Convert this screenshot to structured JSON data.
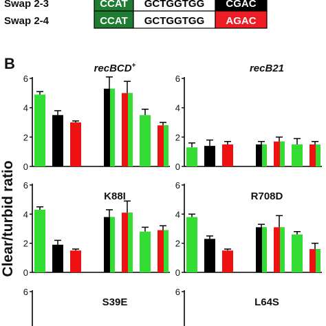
{
  "colors": {
    "green": "#33dd33",
    "black": "#000000",
    "red": "#ee1111",
    "box_green": "#1e7d32",
    "box_red": "#ee1c24"
  },
  "table": {
    "rows": [
      {
        "label": "Swap 2-3",
        "cells": [
          {
            "text": "CCAT",
            "style": "green"
          },
          {
            "text": "GCTGGTGG",
            "style": "white"
          },
          {
            "text": "CGAC",
            "style": "black"
          }
        ]
      },
      {
        "label": "Swap 2-4",
        "cells": [
          {
            "text": "CCAT",
            "style": "green"
          },
          {
            "text": "GCTGGTGG",
            "style": "white"
          },
          {
            "text": "AGAC",
            "style": "red"
          }
        ]
      }
    ]
  },
  "panel_letter": "B",
  "ylabel": "Clear/turbid ratio",
  "chart_data": [
    {
      "type": "bar",
      "title": "recBCD",
      "title_sup": "+",
      "ylim": [
        0,
        6
      ],
      "yticks": [
        0,
        2,
        4,
        6
      ],
      "series": [
        {
          "values": [
            4.9,
            3.5,
            3.0,
            5.3,
            5.0,
            3.5,
            2.8
          ],
          "errors": [
            0.2,
            0.3,
            0.1,
            0.8,
            0.8,
            0.4,
            0.2
          ]
        }
      ]
    },
    {
      "type": "bar",
      "title": "recB21",
      "ylim": [
        0,
        6
      ],
      "yticks": [
        0,
        2,
        4,
        6
      ],
      "series": [
        {
          "values": [
            1.3,
            1.4,
            1.5,
            1.5,
            1.7,
            1.5,
            1.5
          ],
          "errors": [
            0.3,
            0.4,
            0.2,
            0.2,
            0.3,
            0.4,
            0.2
          ]
        }
      ]
    },
    {
      "type": "bar",
      "title": "K88I",
      "ylim": [
        0,
        6
      ],
      "yticks": [
        0,
        2,
        4,
        6
      ],
      "series": [
        {
          "values": [
            4.3,
            1.9,
            1.5,
            3.8,
            4.1,
            2.8,
            2.9
          ],
          "errors": [
            0.2,
            0.3,
            0.1,
            0.5,
            0.8,
            0.3,
            0.3
          ]
        }
      ]
    },
    {
      "type": "bar",
      "title": "R708D",
      "ylim": [
        0,
        6
      ],
      "yticks": [
        0,
        2,
        4,
        6
      ],
      "series": [
        {
          "values": [
            3.8,
            2.3,
            1.5,
            3.1,
            3.1,
            2.6,
            1.6
          ],
          "errors": [
            0.2,
            0.2,
            0.1,
            0.2,
            0.8,
            0.2,
            0.4
          ]
        }
      ]
    },
    {
      "type": "bar",
      "title": "S39E",
      "ylim": [
        0,
        6
      ],
      "yticks": [
        6
      ],
      "series": []
    },
    {
      "type": "bar",
      "title": "L64S",
      "ylim": [
        0,
        6
      ],
      "yticks": [
        6
      ],
      "series": []
    }
  ]
}
